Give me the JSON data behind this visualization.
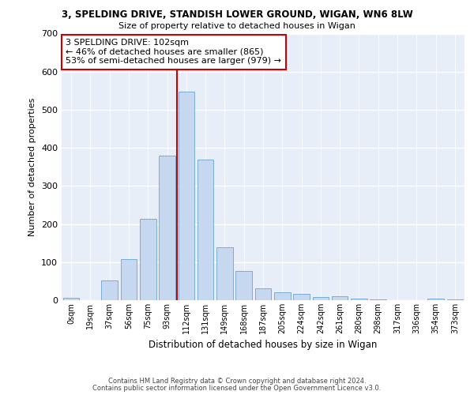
{
  "title": "3, SPELDING DRIVE, STANDISH LOWER GROUND, WIGAN, WN6 8LW",
  "subtitle": "Size of property relative to detached houses in Wigan",
  "xlabel": "Distribution of detached houses by size in Wigan",
  "ylabel": "Number of detached properties",
  "bar_color": "#c5d8f0",
  "bar_edge_color": "#7aadd4",
  "background_color": "#e8eef8",
  "grid_color": "#ffffff",
  "fig_background": "#ffffff",
  "categories": [
    "0sqm",
    "19sqm",
    "37sqm",
    "56sqm",
    "75sqm",
    "93sqm",
    "112sqm",
    "131sqm",
    "149sqm",
    "168sqm",
    "187sqm",
    "205sqm",
    "224sqm",
    "242sqm",
    "261sqm",
    "280sqm",
    "298sqm",
    "317sqm",
    "336sqm",
    "354sqm",
    "373sqm"
  ],
  "values": [
    7,
    0,
    52,
    107,
    213,
    380,
    547,
    370,
    140,
    77,
    32,
    20,
    17,
    8,
    10,
    5,
    2,
    0,
    0,
    5,
    3
  ],
  "ylim": [
    0,
    700
  ],
  "yticks": [
    0,
    100,
    200,
    300,
    400,
    500,
    600,
    700
  ],
  "property_line_x": 5.5,
  "property_line_color": "#cc0000",
  "annotation_text": "3 SPELDING DRIVE: 102sqm\n← 46% of detached houses are smaller (865)\n53% of semi-detached houses are larger (979) →",
  "annotation_box_color": "#ffffff",
  "annotation_box_edge": "#cc0000",
  "footer_line1": "Contains HM Land Registry data © Crown copyright and database right 2024.",
  "footer_line2": "Contains public sector information licensed under the Open Government Licence v3.0."
}
